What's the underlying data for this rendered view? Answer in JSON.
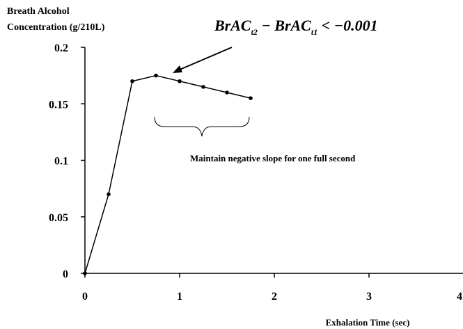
{
  "chart_data": {
    "type": "line",
    "y_label_lines": [
      "Breath Alcohol",
      "Concentration (g/210L)"
    ],
    "x_label": "Exhalation Time (sec)",
    "formula": [
      "BrAC",
      "t2",
      " − BrAC",
      "t1",
      " < −0.001"
    ],
    "annotation": "Maintain negative slope for one full second",
    "x": [
      0,
      0.25,
      0.5,
      0.75,
      1.0,
      1.25,
      1.5,
      1.75
    ],
    "series": [
      {
        "color": "#000000",
        "values": [
          0,
          0.07,
          0.17,
          0.175,
          0.17,
          0.165,
          0.16,
          0.155
        ]
      }
    ],
    "xlim": [
      0,
      4
    ],
    "xticks": [
      0,
      1,
      2,
      3,
      4
    ],
    "ylim": [
      0,
      0.2
    ],
    "yticks": [
      0,
      0.05,
      0.1,
      0.15,
      0.2
    ],
    "grid": false
  }
}
